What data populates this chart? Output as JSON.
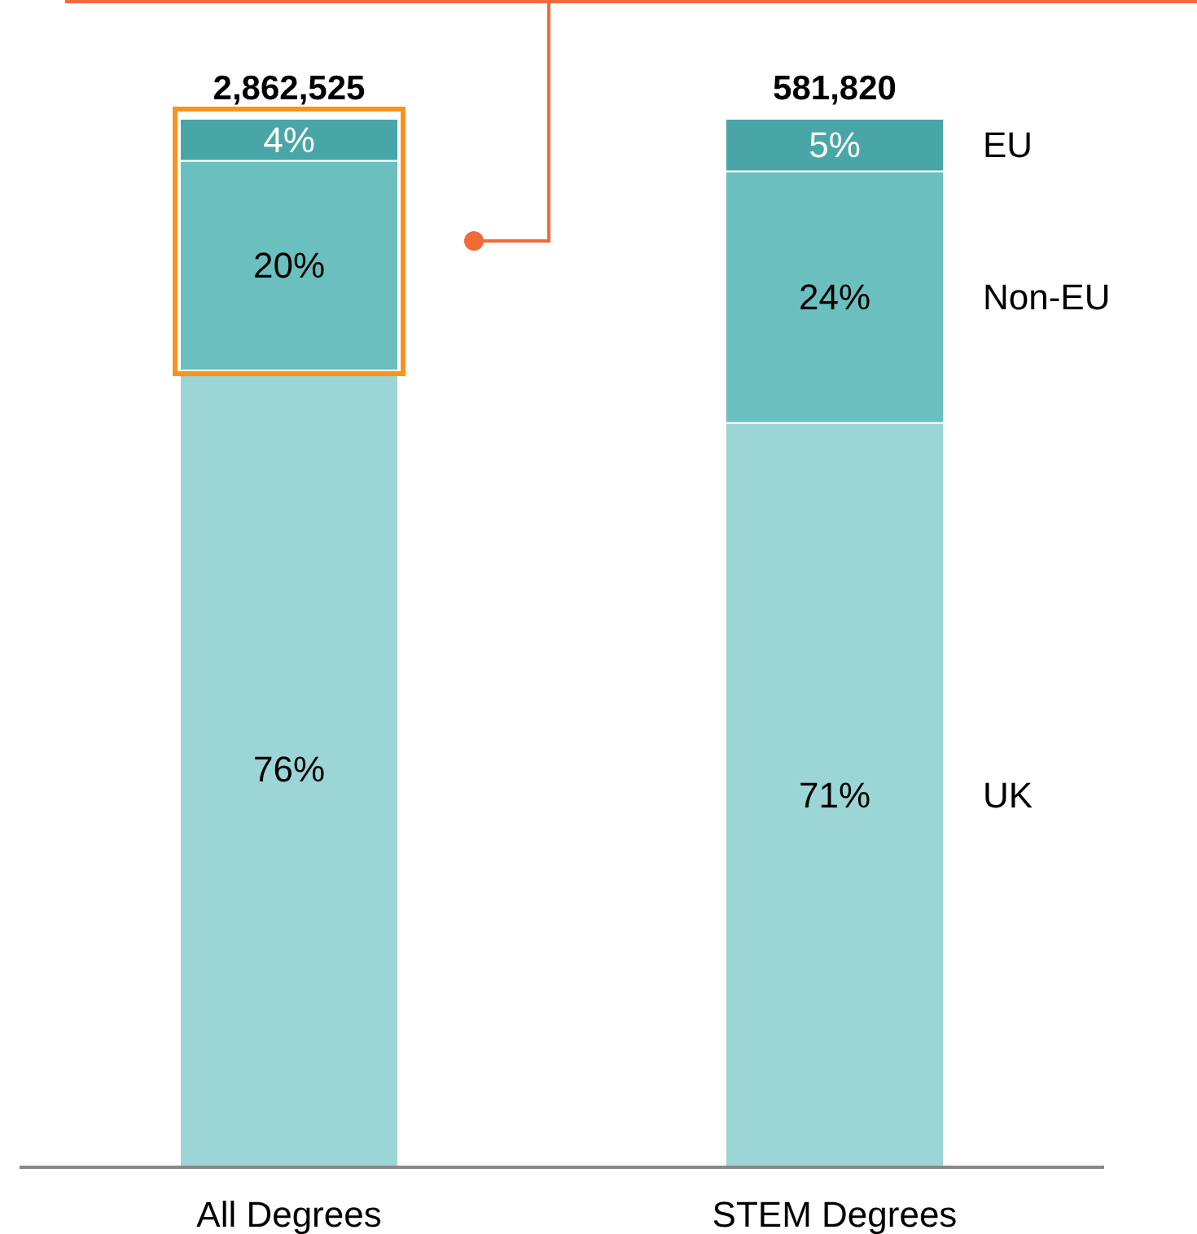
{
  "chart_data": {
    "type": "bar",
    "stacked": true,
    "categories": [
      "All Degrees",
      "STEM Degrees"
    ],
    "series": [
      {
        "name": "UK",
        "color": "#9bd5d5",
        "values": [
          76,
          71
        ],
        "value_labels": [
          "76%",
          "71%"
        ]
      },
      {
        "name": "Non-EU",
        "color": "#6bbfbf",
        "values": [
          20,
          24
        ],
        "value_labels": [
          "20%",
          "24%"
        ]
      },
      {
        "name": "EU",
        "color": "#48a6a6",
        "values": [
          4,
          5
        ],
        "value_labels": [
          "4%",
          "5%"
        ]
      }
    ],
    "annotations": [
      {
        "text": "2,862,525",
        "x": "All Degrees",
        "y": 100
      },
      {
        "text": "581,820",
        "x": "STEM Degrees",
        "y": 100
      }
    ],
    "legend": "right"
  }
}
